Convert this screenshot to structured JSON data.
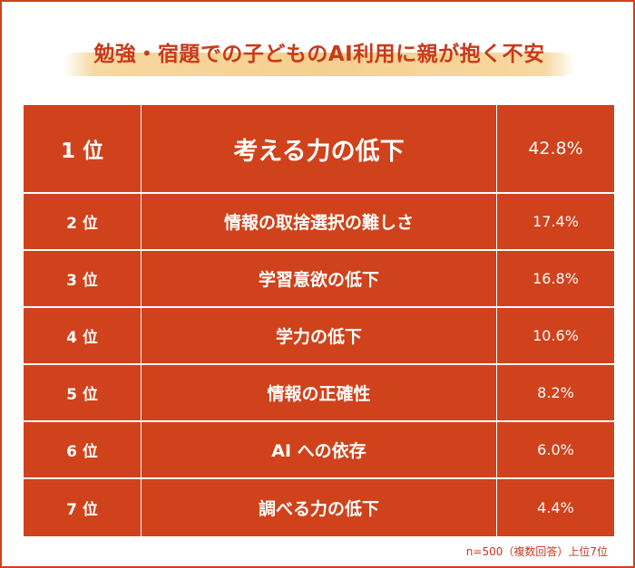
{
  "title": "勉強・宿題での子どものAI利用に親が抱く不安",
  "chart_data": {
    "type": "table",
    "title": "勉強・宿題での子どものAI利用に親が抱く不安",
    "rows": [
      {
        "rank": "1 位",
        "item": "考える力の低下",
        "value": 42.8,
        "label": "42.8%"
      },
      {
        "rank": "2 位",
        "item": "情報の取捨選択の難しさ",
        "value": 17.4,
        "label": "17.4%"
      },
      {
        "rank": "3 位",
        "item": "学習意欲の低下",
        "value": 16.8,
        "label": "16.8%"
      },
      {
        "rank": "4 位",
        "item": "学力の低下",
        "value": 10.6,
        "label": "10.6%"
      },
      {
        "rank": "5 位",
        "item": "情報の正確性",
        "value": 8.2,
        "label": "8.2%"
      },
      {
        "rank": "6 位",
        "item": "AI への依存",
        "value": 6.0,
        "label": "6.0%"
      },
      {
        "rank": "7 位",
        "item": "調べる力の低下",
        "value": 4.4,
        "label": "4.4%"
      }
    ],
    "note": "n=500（複数回答）上位7位"
  },
  "colors": {
    "accent": "#d0421b",
    "title_text": "#c9391a",
    "title_brush": "#f5cf8e",
    "cell_text": "#ffffff"
  }
}
